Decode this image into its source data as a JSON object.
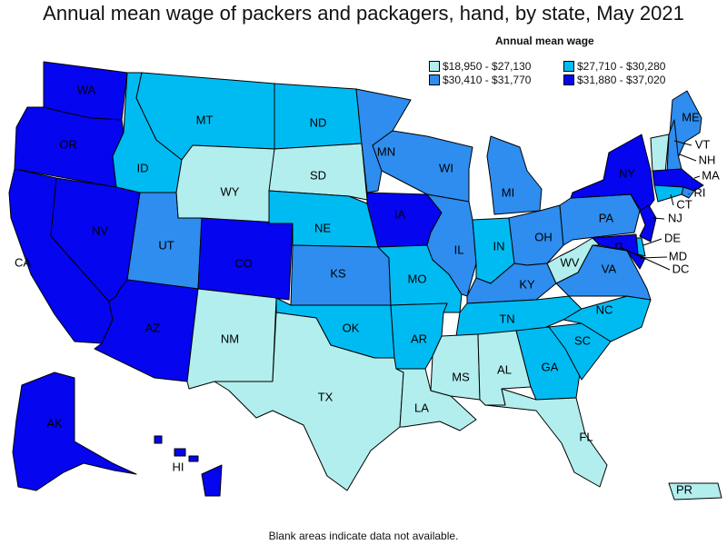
{
  "title": "Annual mean wage of packers and packagers, hand, by state, May 2021",
  "legend": {
    "title": "Annual mean wage",
    "bins": [
      {
        "label": "$18,950 - $27,130",
        "color": "#b2eeee"
      },
      {
        "label": "$27,710 - $30,280",
        "color": "#00bbf2"
      },
      {
        "label": "$30,410 - $31,770",
        "color": "#2e8def"
      },
      {
        "label": "$31,880 - $37,020",
        "color": "#0505ef"
      }
    ]
  },
  "footnote": "Blank areas indicate data not available.",
  "states": [
    {
      "abbr": "WA",
      "bin": 3
    },
    {
      "abbr": "OR",
      "bin": 3
    },
    {
      "abbr": "CA",
      "bin": 3
    },
    {
      "abbr": "NV",
      "bin": 3
    },
    {
      "abbr": "ID",
      "bin": 1
    },
    {
      "abbr": "MT",
      "bin": 1
    },
    {
      "abbr": "WY",
      "bin": 0
    },
    {
      "abbr": "UT",
      "bin": 2
    },
    {
      "abbr": "AZ",
      "bin": 3
    },
    {
      "abbr": "CO",
      "bin": 3
    },
    {
      "abbr": "NM",
      "bin": 0
    },
    {
      "abbr": "ND",
      "bin": 1
    },
    {
      "abbr": "SD",
      "bin": 0
    },
    {
      "abbr": "NE",
      "bin": 1
    },
    {
      "abbr": "KS",
      "bin": 2
    },
    {
      "abbr": "OK",
      "bin": 1
    },
    {
      "abbr": "TX",
      "bin": 0
    },
    {
      "abbr": "MN",
      "bin": 2
    },
    {
      "abbr": "IA",
      "bin": 3
    },
    {
      "abbr": "MO",
      "bin": 1
    },
    {
      "abbr": "AR",
      "bin": 1
    },
    {
      "abbr": "LA",
      "bin": 0
    },
    {
      "abbr": "WI",
      "bin": 2
    },
    {
      "abbr": "IL",
      "bin": 2
    },
    {
      "abbr": "MI",
      "bin": 2
    },
    {
      "abbr": "IN",
      "bin": 1
    },
    {
      "abbr": "OH",
      "bin": 2
    },
    {
      "abbr": "KY",
      "bin": 2
    },
    {
      "abbr": "TN",
      "bin": 1
    },
    {
      "abbr": "MS",
      "bin": 0
    },
    {
      "abbr": "AL",
      "bin": 0
    },
    {
      "abbr": "GA",
      "bin": 1
    },
    {
      "abbr": "FL",
      "bin": 0
    },
    {
      "abbr": "SC",
      "bin": 1
    },
    {
      "abbr": "NC",
      "bin": 1
    },
    {
      "abbr": "VA",
      "bin": 2
    },
    {
      "abbr": "WV",
      "bin": 0
    },
    {
      "abbr": "PA",
      "bin": 2
    },
    {
      "abbr": "NY",
      "bin": 3
    },
    {
      "abbr": "ME",
      "bin": 2
    },
    {
      "abbr": "VT",
      "bin": 0
    },
    {
      "abbr": "NH",
      "bin": 2
    },
    {
      "abbr": "MA",
      "bin": 3
    },
    {
      "abbr": "RI",
      "bin": 2
    },
    {
      "abbr": "CT",
      "bin": 1
    },
    {
      "abbr": "NJ",
      "bin": 3
    },
    {
      "abbr": "DE",
      "bin": 1
    },
    {
      "abbr": "MD",
      "bin": 3
    },
    {
      "abbr": "DC",
      "bin": 3
    },
    {
      "abbr": "AK",
      "bin": 3
    },
    {
      "abbr": "HI",
      "bin": 3
    },
    {
      "abbr": "PR",
      "bin": 0
    }
  ]
}
